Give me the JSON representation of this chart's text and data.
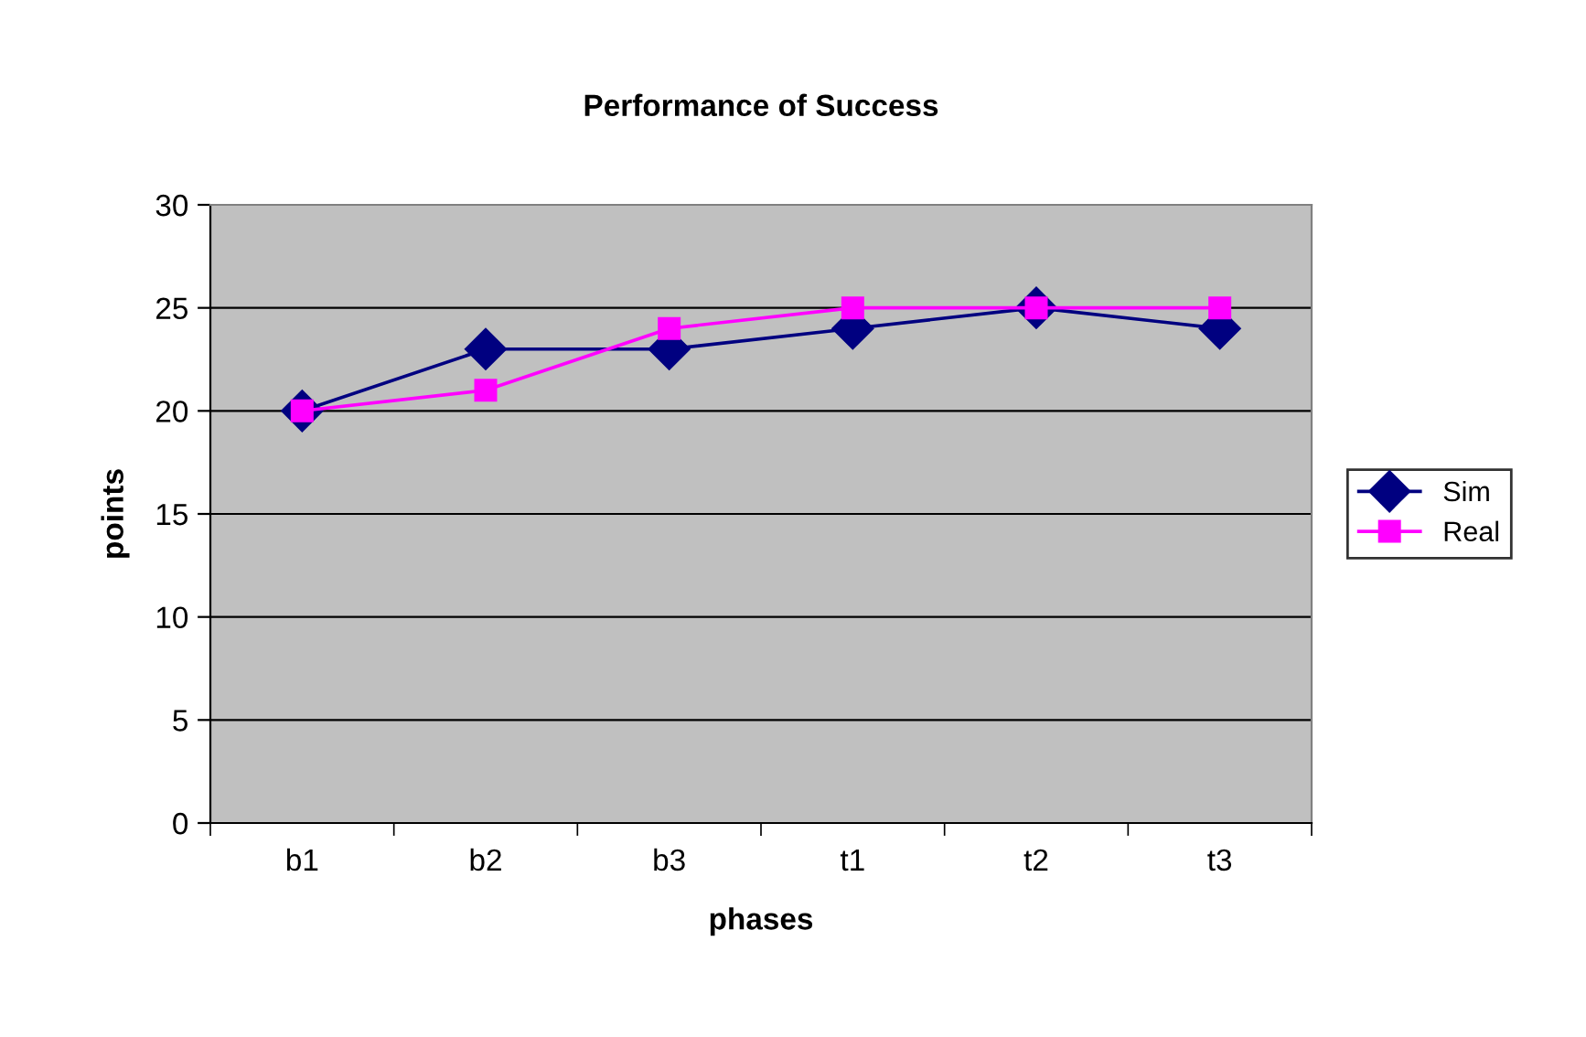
{
  "chart_data": {
    "type": "line",
    "title": "Performance of Success",
    "xlabel": "phases",
    "ylabel": "points",
    "categories": [
      "b1",
      "b2",
      "b3",
      "t1",
      "t2",
      "t3"
    ],
    "series": [
      {
        "name": "Sim",
        "color": "#000080",
        "marker": "diamond",
        "values": [
          20,
          23,
          23,
          24,
          25,
          24
        ]
      },
      {
        "name": "Real",
        "color": "#ff00ff",
        "marker": "square",
        "values": [
          20,
          21,
          24,
          25,
          25,
          25
        ]
      }
    ],
    "ylim": [
      0,
      30
    ],
    "yticks": [
      0,
      5,
      10,
      15,
      20,
      25,
      30
    ],
    "grid": "y",
    "legend": "right",
    "line_style": "solid"
  }
}
